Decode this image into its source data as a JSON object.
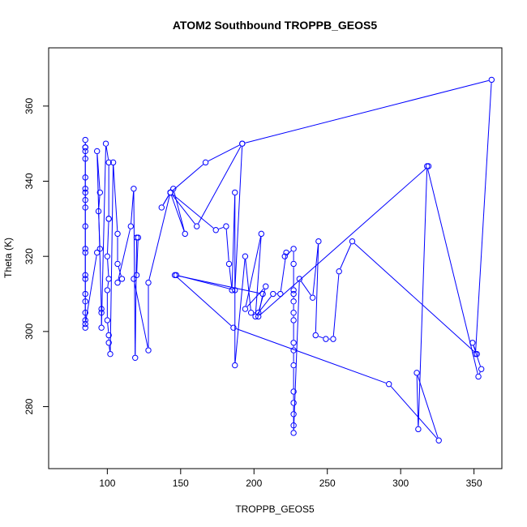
{
  "chart_data": {
    "type": "line",
    "title": "ATOM2 Southbound TROPPB_GEOS5",
    "xlabel": "TROPPB_GEOS5",
    "ylabel": "Theta (K)",
    "xlim": [
      60,
      369
    ],
    "ylim": [
      263.5,
      375.5
    ],
    "x_ticks": [
      100,
      150,
      200,
      250,
      300,
      350
    ],
    "y_ticks": [
      280,
      300,
      320,
      340,
      360
    ],
    "grid": false,
    "legend": "none",
    "series_color": "#0000ff",
    "series": [
      {
        "points": [
          [
            85,
            301
          ],
          [
            85,
            303
          ],
          [
            85,
            305
          ],
          [
            85,
            308
          ],
          [
            85,
            310
          ],
          [
            85,
            314
          ],
          [
            85,
            315
          ],
          [
            85,
            322
          ],
          [
            85,
            328
          ],
          [
            85,
            333
          ],
          [
            85,
            335
          ],
          [
            85,
            337
          ],
          [
            85,
            338
          ],
          [
            85,
            341
          ],
          [
            85,
            346
          ],
          [
            85,
            348
          ],
          [
            85,
            349
          ],
          [
            85,
            351
          ],
          [
            85,
            349
          ],
          [
            85,
            321
          ],
          [
            85,
            302
          ],
          [
            93,
            321
          ],
          [
            95,
            322
          ],
          [
            94,
            332
          ],
          [
            95,
            337
          ],
          [
            93,
            348
          ],
          [
            96,
            305
          ],
          [
            96,
            306
          ],
          [
            96,
            301
          ],
          [
            99,
            350
          ],
          [
            101,
            345
          ],
          [
            101,
            330
          ],
          [
            101,
            330
          ],
          [
            100,
            320
          ],
          [
            101,
            314
          ],
          [
            100,
            311
          ],
          [
            100,
            303
          ],
          [
            101,
            299
          ],
          [
            101,
            297
          ],
          [
            102,
            294
          ],
          [
            104,
            345
          ],
          [
            107,
            326
          ],
          [
            107,
            318
          ],
          [
            110,
            314
          ],
          [
            107,
            313
          ],
          [
            116,
            328
          ],
          [
            118,
            338
          ],
          [
            119,
            293
          ],
          [
            120,
            325
          ],
          [
            121,
            325
          ],
          [
            120,
            315
          ],
          [
            118,
            314
          ],
          [
            128,
            295
          ],
          [
            128,
            313
          ],
          [
            143,
            337
          ],
          [
            145,
            338
          ],
          [
            153,
            326
          ],
          [
            143,
            337
          ],
          [
            174,
            327
          ],
          [
            181,
            328
          ],
          [
            183,
            318
          ],
          [
            185,
            311
          ],
          [
            187,
            337
          ],
          [
            187,
            291
          ],
          [
            194,
            320
          ],
          [
            198,
            305
          ],
          [
            203,
            305
          ],
          [
            208,
            312
          ],
          [
            194,
            306
          ],
          [
            205,
            326
          ],
          [
            201,
            304
          ],
          [
            213,
            310
          ],
          [
            218,
            310
          ],
          [
            222,
            321
          ],
          [
            221,
            320
          ],
          [
            227,
            322
          ],
          [
            227,
            318
          ],
          [
            227,
            311
          ],
          [
            227,
            310
          ],
          [
            227,
            308
          ],
          [
            227,
            305
          ],
          [
            227,
            303
          ],
          [
            227,
            297
          ],
          [
            227,
            295
          ],
          [
            227,
            291
          ],
          [
            227,
            284
          ],
          [
            227,
            281
          ],
          [
            227,
            278
          ],
          [
            227,
            275
          ],
          [
            227,
            273
          ],
          [
            231,
            314
          ],
          [
            240,
            309
          ],
          [
            244,
            324
          ],
          [
            242,
            299
          ],
          [
            249,
            298
          ],
          [
            254,
            298
          ],
          [
            258,
            316
          ],
          [
            267,
            324
          ],
          [
            352,
            294
          ],
          [
            349,
            297
          ],
          [
            355,
            290
          ],
          [
            353,
            288
          ],
          [
            318,
            344
          ],
          [
            312,
            274
          ],
          [
            311,
            289
          ],
          [
            326,
            271
          ],
          [
            292,
            286
          ],
          [
            186,
            301
          ],
          [
            146,
            315
          ],
          [
            206,
            310
          ],
          [
            203,
            304
          ],
          [
            319,
            344
          ]
        ]
      },
      {
        "points": [
          [
            147,
            315
          ],
          [
            187,
            311
          ],
          [
            192,
            350
          ],
          [
            161,
            328
          ],
          [
            143,
            337
          ],
          [
            137,
            333
          ],
          [
            143,
            337
          ],
          [
            167,
            345
          ],
          [
            192,
            350
          ],
          [
            362,
            367
          ],
          [
            351,
            294
          ]
        ]
      }
    ]
  }
}
